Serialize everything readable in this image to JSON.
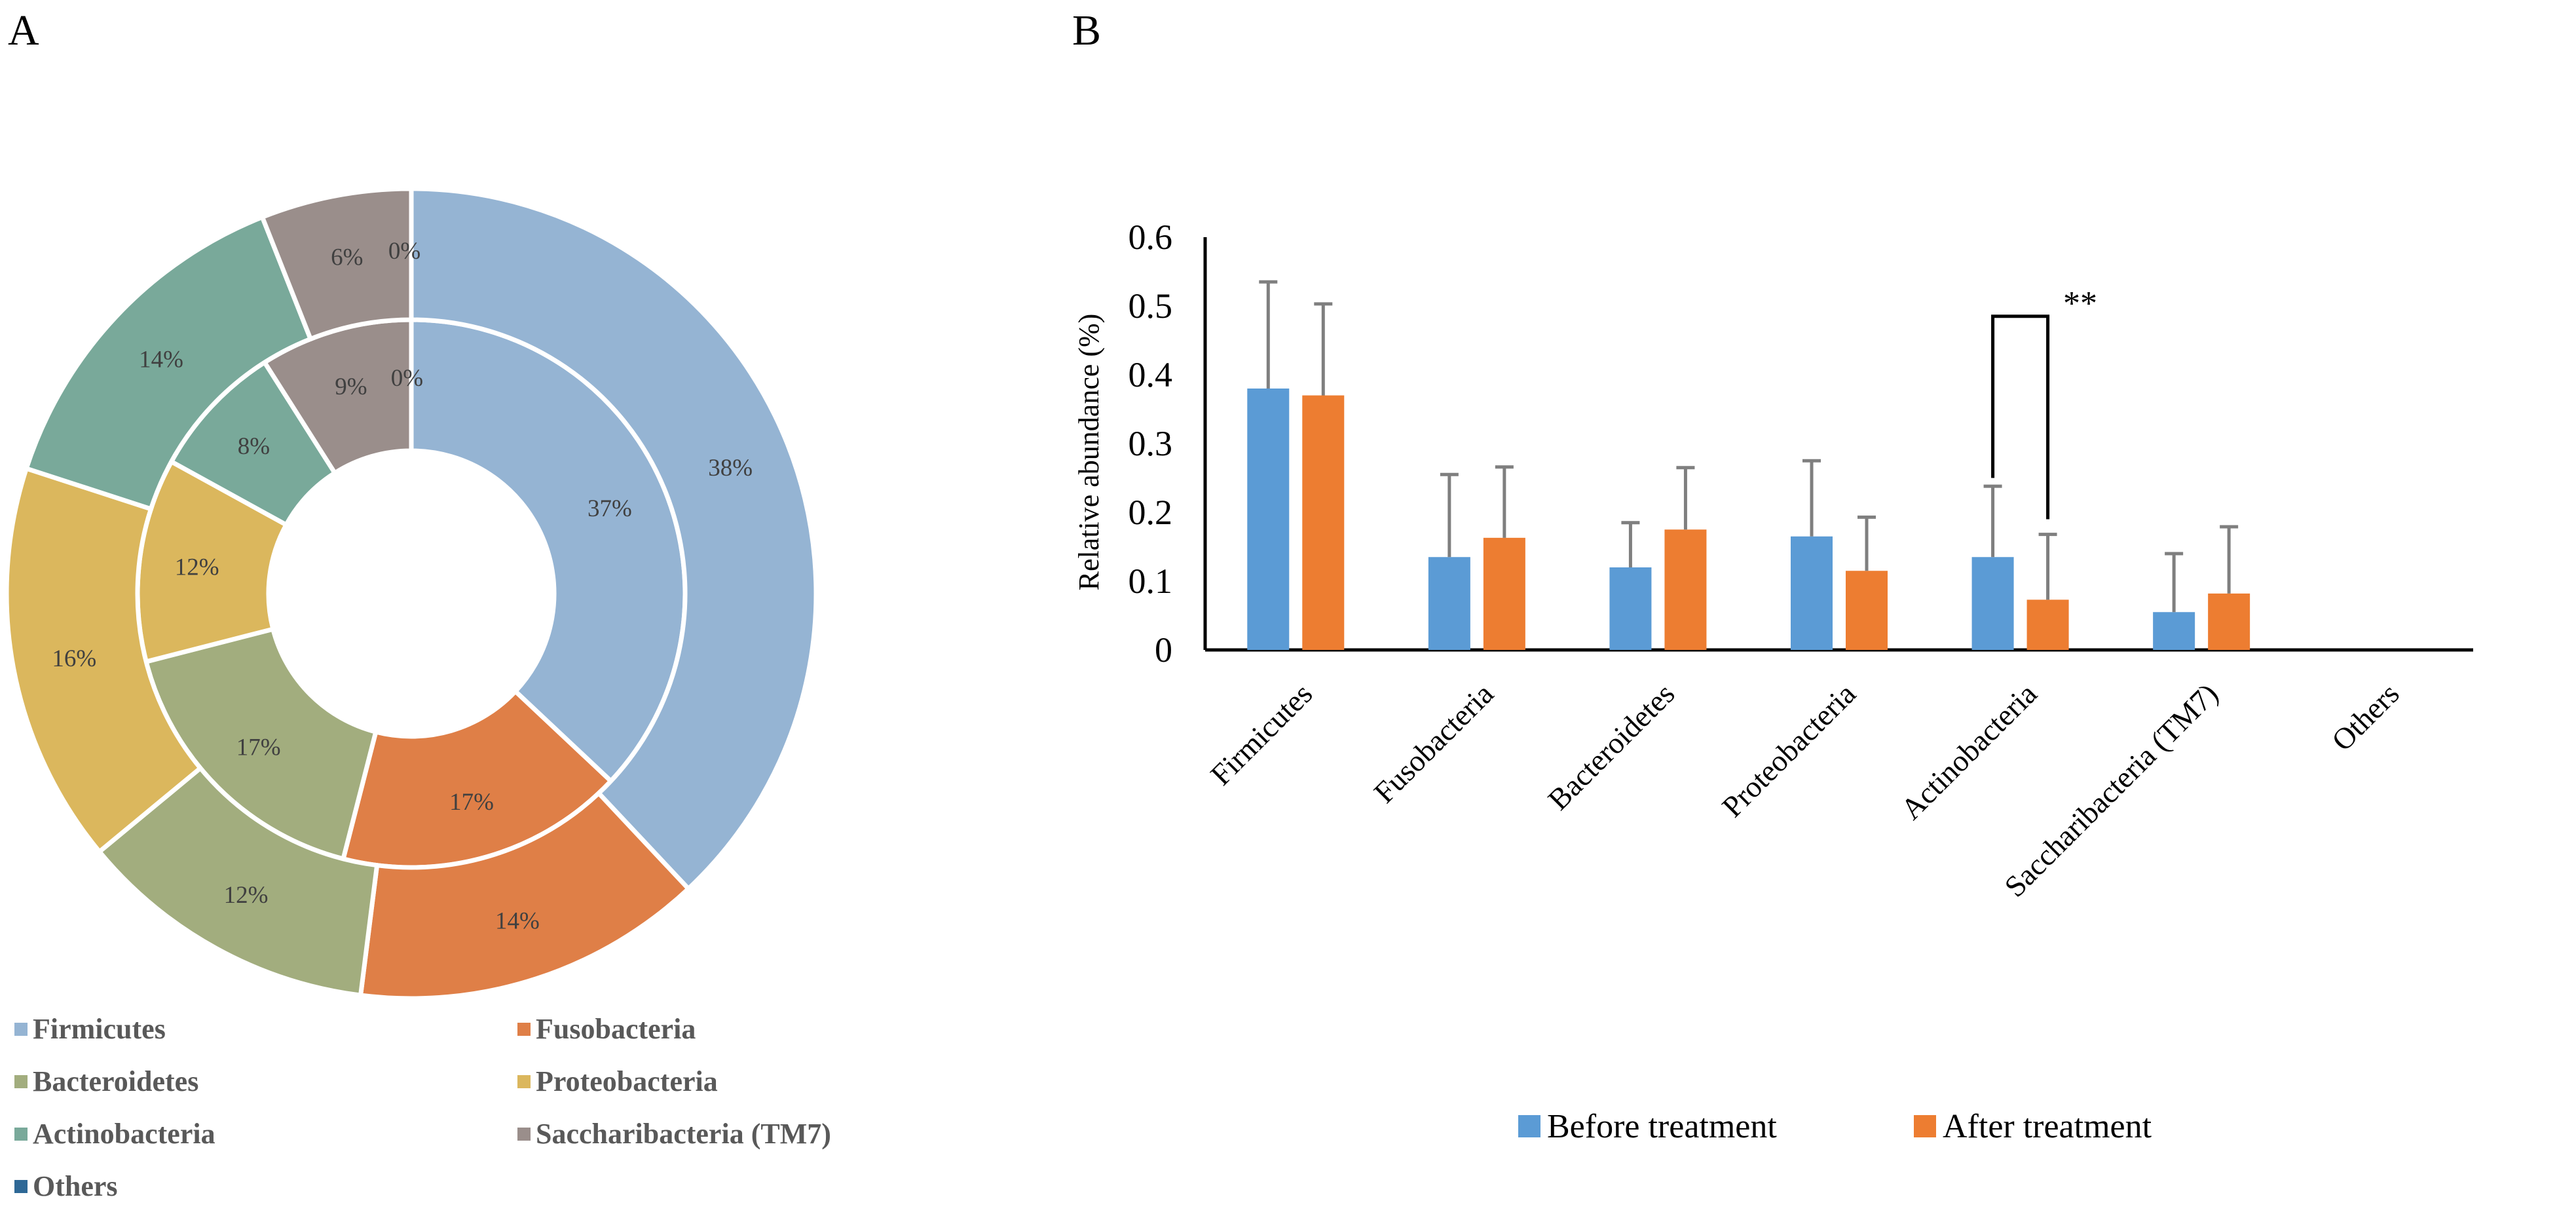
{
  "chart_data": [
    {
      "type": "pie",
      "variant": "double-donut",
      "panel_label": "A",
      "categories": [
        "Firmicutes",
        "Fusobacteria",
        "Bacteroidetes",
        "Proteobacteria",
        "Actinobacteria",
        "Saccharibacteria (TM7)",
        "Others"
      ],
      "colors": [
        "#95b4d3",
        "#df7f47",
        "#a2ad7e",
        "#dbb75d",
        "#79a99a",
        "#9a8e8b",
        "#2e6896"
      ],
      "rings": [
        {
          "name": "inner",
          "values": [
            37,
            17,
            17,
            12,
            8,
            9,
            0
          ],
          "labels": [
            "37%",
            "17%",
            "17%",
            "12%",
            "8%",
            "9%",
            "0%"
          ]
        },
        {
          "name": "outer",
          "values": [
            38,
            14,
            12,
            16,
            14,
            6,
            0
          ],
          "labels": [
            "38%",
            "14%",
            "12%",
            "16%",
            "14%",
            "6%",
            "0%"
          ]
        }
      ],
      "legend_position": "bottom"
    },
    {
      "type": "bar",
      "panel_label": "B",
      "categories": [
        "Firmicutes",
        "Fusobacteria",
        "Bacteroidetes",
        "Proteobacteria",
        "Actinobacteria",
        "Saccharibacteria (TM7)",
        "Others"
      ],
      "series": [
        {
          "name": "Before treatment",
          "color": "#5b9bd5",
          "values": [
            0.38,
            0.135,
            0.12,
            0.165,
            0.135,
            0.055,
            0
          ],
          "errors": [
            0.155,
            0.12,
            0.065,
            0.11,
            0.103,
            0.085,
            0
          ]
        },
        {
          "name": "After treatment",
          "color": "#ed7d31",
          "values": [
            0.37,
            0.163,
            0.175,
            0.115,
            0.073,
            0.082,
            0
          ],
          "errors": [
            0.133,
            0.103,
            0.09,
            0.078,
            0.095,
            0.097,
            0
          ]
        }
      ],
      "ylabel": "Relative abundance (%)",
      "xlabel": "",
      "ylim": [
        0,
        0.6
      ],
      "yticks": [
        "0",
        "0.1",
        "0.2",
        "0.3",
        "0.4",
        "0.5",
        "0.6"
      ],
      "grid": false,
      "annotation": {
        "category": "Actinobacteria",
        "text": "**"
      },
      "legend_position": "bottom"
    }
  ]
}
